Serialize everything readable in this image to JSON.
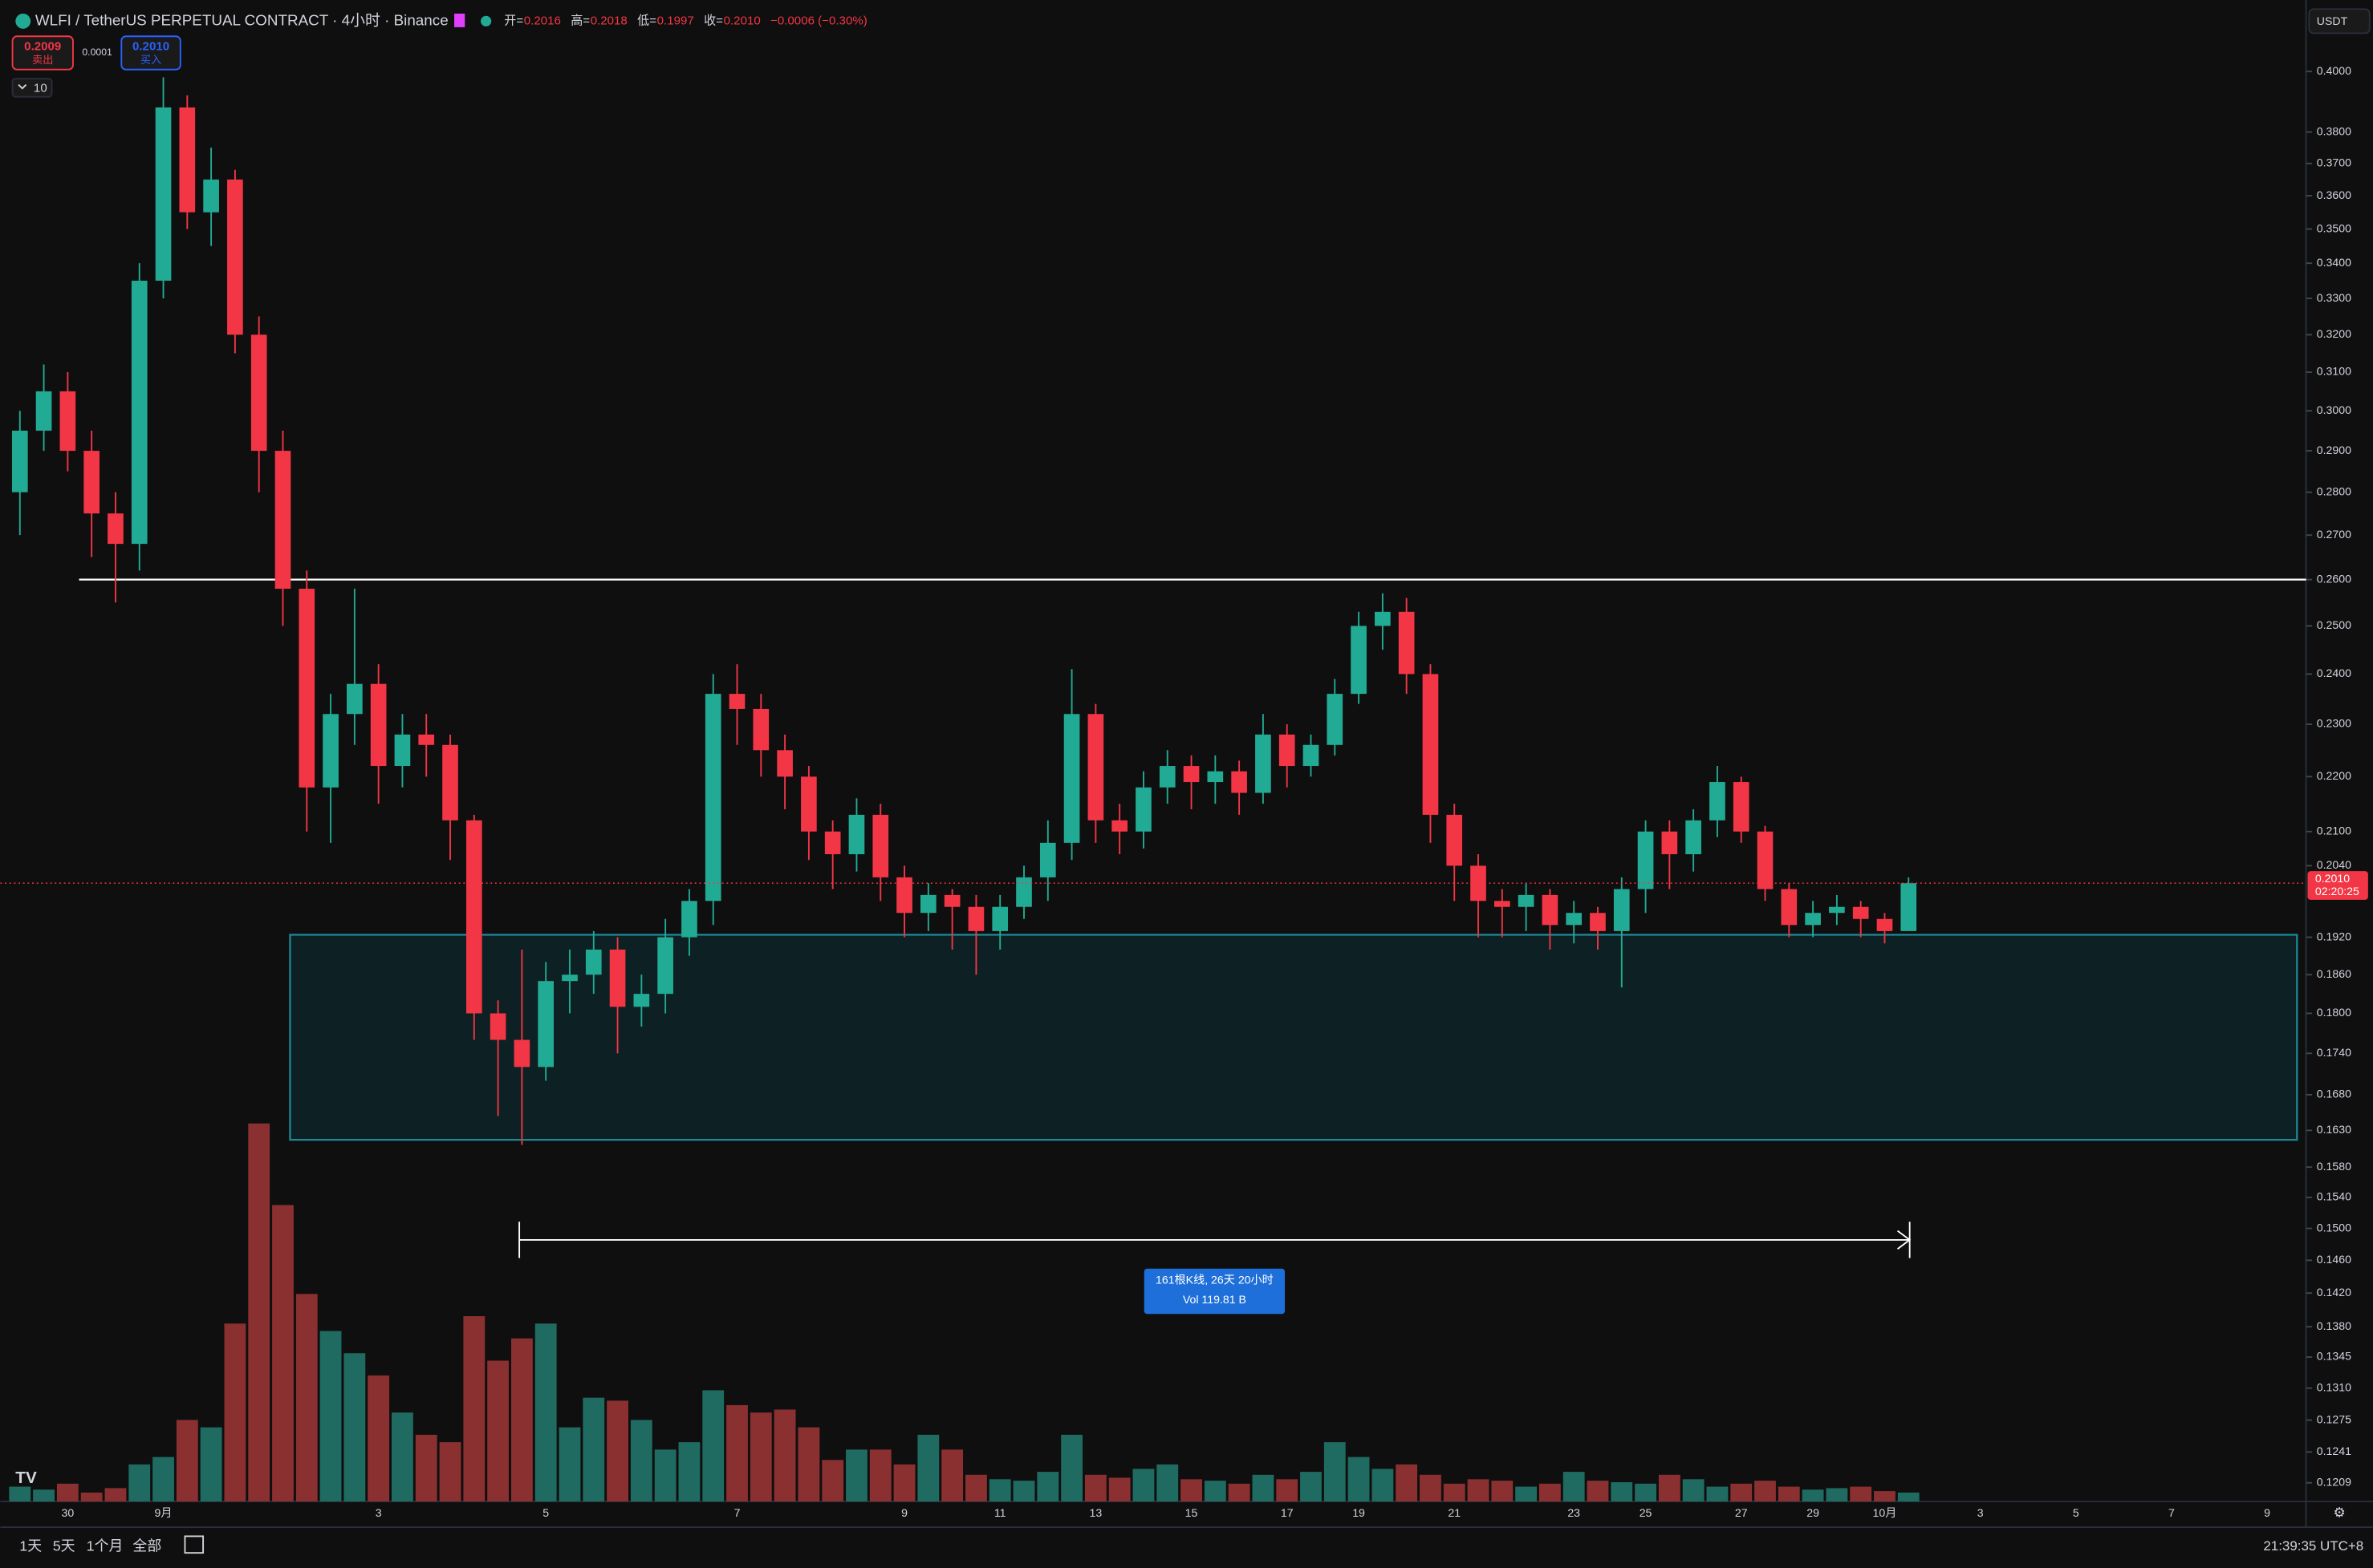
{
  "header": {
    "symbol": "WLFI / TetherUS PERPETUAL CONTRACT · 4小时 · Binance",
    "open_label": "开=",
    "open": "0.2016",
    "high_label": "高=",
    "high": "0.2018",
    "low_label": "低=",
    "low": "0.1997",
    "close_label": "收=",
    "close": "0.2010",
    "change": "−0.0006 (−0.30%)",
    "sell_price": "0.2009",
    "sell_label": "卖出",
    "spread": "0.0001",
    "buy_price": "0.2010",
    "buy_label": "买入",
    "indicator_count": "10",
    "currency": "USDT"
  },
  "chart_data": {
    "type": "candlestick",
    "log_scale": true,
    "up_color": "#22ab94",
    "down_color": "#f23645",
    "volume_up_color": "#1f6b61",
    "volume_down_color": "#8a3030",
    "ylim": [
      0.119,
      0.425
    ],
    "yticks": [
      {
        "value": 0.4,
        "label": "0.4000"
      },
      {
        "value": 0.38,
        "label": "0.3800"
      },
      {
        "value": 0.37,
        "label": "0.3700"
      },
      {
        "value": 0.36,
        "label": "0.3600"
      },
      {
        "value": 0.35,
        "label": "0.3500"
      },
      {
        "value": 0.34,
        "label": "0.3400"
      },
      {
        "value": 0.33,
        "label": "0.3300"
      },
      {
        "value": 0.32,
        "label": "0.3200"
      },
      {
        "value": 0.31,
        "label": "0.3100"
      },
      {
        "value": 0.3,
        "label": "0.3000"
      },
      {
        "value": 0.29,
        "label": "0.2900"
      },
      {
        "value": 0.28,
        "label": "0.2800"
      },
      {
        "value": 0.27,
        "label": "0.2700"
      },
      {
        "value": 0.26,
        "label": "0.2600"
      },
      {
        "value": 0.25,
        "label": "0.2500"
      },
      {
        "value": 0.24,
        "label": "0.2400"
      },
      {
        "value": 0.23,
        "label": "0.2300"
      },
      {
        "value": 0.22,
        "label": "0.2200"
      },
      {
        "value": 0.21,
        "label": "0.2100"
      },
      {
        "value": 0.204,
        "label": "0.2040"
      },
      {
        "value": 0.192,
        "label": "0.1920"
      },
      {
        "value": 0.186,
        "label": "0.1860"
      },
      {
        "value": 0.18,
        "label": "0.1800"
      },
      {
        "value": 0.174,
        "label": "0.1740"
      },
      {
        "value": 0.168,
        "label": "0.1680"
      },
      {
        "value": 0.163,
        "label": "0.1630"
      },
      {
        "value": 0.158,
        "label": "0.1580"
      },
      {
        "value": 0.154,
        "label": "0.1540"
      },
      {
        "value": 0.15,
        "label": "0.1500"
      },
      {
        "value": 0.146,
        "label": "0.1460"
      },
      {
        "value": 0.142,
        "label": "0.1420"
      },
      {
        "value": 0.138,
        "label": "0.1380"
      },
      {
        "value": 0.1345,
        "label": "0.1345"
      },
      {
        "value": 0.131,
        "label": "0.1310"
      },
      {
        "value": 0.1275,
        "label": "0.1275"
      },
      {
        "value": 0.1241,
        "label": "0.1241"
      },
      {
        "value": 0.1209,
        "label": "0.1209"
      }
    ],
    "categories": [
      null,
      null,
      "30",
      null,
      null,
      null,
      "9月",
      null,
      null,
      null,
      null,
      null,
      null,
      null,
      null,
      "3",
      null,
      null,
      null,
      null,
      null,
      null,
      "5",
      null,
      null,
      null,
      null,
      null,
      null,
      null,
      "7",
      null,
      null,
      null,
      null,
      null,
      null,
      "9",
      null,
      null,
      null,
      "11",
      null,
      null,
      null,
      "13",
      null,
      null,
      null,
      "15",
      null,
      null,
      null,
      "17",
      null,
      null,
      "19",
      null,
      null,
      null,
      "21",
      null,
      null,
      null,
      null,
      "23",
      null,
      null,
      "25",
      null,
      null,
      null,
      "27",
      null,
      null,
      "29",
      null,
      null,
      "10月",
      null,
      null,
      null,
      "3",
      null,
      null,
      null,
      "5",
      null,
      null,
      null,
      "7",
      null,
      null,
      null,
      "9",
      null
    ],
    "open": [
      0.28,
      0.295,
      0.305,
      0.29,
      0.275,
      0.268,
      0.335,
      0.388,
      0.355,
      0.365,
      0.32,
      0.29,
      0.258,
      0.218,
      0.232,
      0.238,
      0.222,
      0.228,
      0.226,
      0.212,
      0.18,
      0.176,
      0.172,
      0.185,
      0.186,
      0.19,
      0.181,
      0.183,
      0.192,
      0.198,
      0.236,
      0.233,
      0.225,
      0.22,
      0.21,
      0.206,
      0.213,
      0.202,
      0.196,
      0.199,
      0.197,
      0.193,
      0.197,
      0.202,
      0.208,
      0.232,
      0.212,
      0.21,
      0.218,
      0.222,
      0.219,
      0.221,
      0.217,
      0.228,
      0.222,
      0.226,
      0.236,
      0.25,
      0.253,
      0.24,
      0.213,
      0.204,
      0.198,
      0.197,
      0.199,
      0.194,
      0.196,
      0.193,
      0.2,
      0.21,
      0.206,
      0.212,
      0.219,
      0.21,
      0.2,
      0.194,
      0.196,
      0.197,
      0.195,
      0.193,
      null,
      null,
      null,
      null,
      null,
      null,
      null,
      null,
      null,
      null,
      null,
      null,
      null,
      null,
      null,
      null
    ],
    "high": [
      0.3,
      0.312,
      0.31,
      0.295,
      0.28,
      0.34,
      0.398,
      0.392,
      0.375,
      0.368,
      0.325,
      0.295,
      0.262,
      0.236,
      0.258,
      0.242,
      0.232,
      0.232,
      0.228,
      0.213,
      0.182,
      0.19,
      0.188,
      0.19,
      0.193,
      0.192,
      0.186,
      0.195,
      0.2,
      0.24,
      0.242,
      0.236,
      0.228,
      0.222,
      0.212,
      0.216,
      0.215,
      0.204,
      0.201,
      0.2,
      0.199,
      0.199,
      0.204,
      0.212,
      0.241,
      0.234,
      0.215,
      0.221,
      0.225,
      0.224,
      0.224,
      0.223,
      0.232,
      0.23,
      0.228,
      0.239,
      0.253,
      0.257,
      0.256,
      0.242,
      0.215,
      0.206,
      0.2,
      0.201,
      0.2,
      0.198,
      0.197,
      0.202,
      0.212,
      0.212,
      0.214,
      0.222,
      0.22,
      0.211,
      0.201,
      0.198,
      0.199,
      0.198,
      0.196,
      0.202,
      null,
      null,
      null,
      null,
      null,
      null,
      null,
      null,
      null,
      null,
      null,
      null,
      null,
      null,
      null,
      null
    ],
    "low": [
      0.27,
      0.29,
      0.285,
      0.265,
      0.255,
      0.262,
      0.33,
      0.35,
      0.345,
      0.315,
      0.28,
      0.25,
      0.21,
      0.208,
      0.226,
      0.215,
      0.218,
      0.22,
      0.205,
      0.176,
      0.165,
      0.161,
      0.17,
      0.18,
      0.183,
      0.174,
      0.178,
      0.18,
      0.189,
      0.194,
      0.226,
      0.22,
      0.214,
      0.205,
      0.2,
      0.203,
      0.198,
      0.192,
      0.193,
      0.19,
      0.186,
      0.19,
      0.195,
      0.198,
      0.205,
      0.208,
      0.206,
      0.207,
      0.215,
      0.214,
      0.215,
      0.213,
      0.215,
      0.218,
      0.22,
      0.224,
      0.234,
      0.245,
      0.236,
      0.208,
      0.198,
      0.192,
      0.192,
      0.193,
      0.19,
      0.191,
      0.19,
      0.184,
      0.196,
      0.2,
      0.203,
      0.209,
      0.208,
      0.198,
      0.192,
      0.192,
      0.194,
      0.192,
      0.191,
      0.193,
      null,
      null,
      null,
      null,
      null,
      null,
      null,
      null,
      null,
      null,
      null,
      null,
      null,
      null,
      null,
      null
    ],
    "close": [
      0.295,
      0.305,
      0.29,
      0.275,
      0.268,
      0.335,
      0.388,
      0.355,
      0.365,
      0.32,
      0.29,
      0.258,
      0.218,
      0.232,
      0.238,
      0.222,
      0.228,
      0.226,
      0.212,
      0.18,
      0.176,
      0.172,
      0.185,
      0.186,
      0.19,
      0.181,
      0.183,
      0.192,
      0.198,
      0.236,
      0.233,
      0.225,
      0.22,
      0.21,
      0.206,
      0.213,
      0.202,
      0.196,
      0.199,
      0.197,
      0.193,
      0.197,
      0.202,
      0.208,
      0.232,
      0.212,
      0.21,
      0.218,
      0.222,
      0.219,
      0.221,
      0.217,
      0.228,
      0.222,
      0.226,
      0.236,
      0.25,
      0.253,
      0.24,
      0.213,
      0.204,
      0.198,
      0.197,
      0.199,
      0.194,
      0.196,
      0.193,
      0.2,
      0.21,
      0.206,
      0.212,
      0.219,
      0.21,
      0.2,
      0.194,
      0.196,
      0.197,
      0.195,
      0.193,
      0.201,
      null,
      null,
      null,
      null,
      null,
      null,
      null,
      null,
      null,
      null,
      null,
      null,
      null,
      null,
      null,
      null
    ],
    "volume": [
      10,
      8,
      12,
      6,
      9,
      25,
      30,
      55,
      50,
      120,
      255,
      200,
      140,
      115,
      100,
      85,
      60,
      45,
      40,
      125,
      95,
      110,
      120,
      50,
      70,
      68,
      55,
      35,
      40,
      75,
      65,
      60,
      62,
      50,
      28,
      35,
      35,
      25,
      45,
      35,
      18,
      15,
      14,
      20,
      45,
      18,
      16,
      22,
      25,
      15,
      14,
      12,
      18,
      15,
      20,
      40,
      30,
      22,
      25,
      18,
      12,
      15,
      14,
      10,
      12,
      20,
      14,
      13,
      12,
      18,
      15,
      10,
      12,
      14,
      10,
      8,
      9,
      10,
      7,
      6,
      null,
      null,
      null,
      null,
      null,
      null,
      null,
      null,
      null,
      null,
      null,
      null,
      null,
      null,
      null,
      null
    ],
    "horizontal_line": 0.26,
    "zone": [
      0.1924,
      0.1617
    ],
    "last_price_label": "0.2010",
    "countdown": "02:20:25",
    "measure_label": "161根K线, 26天 20小时",
    "measure_volume": "Vol 119.81 B"
  },
  "footer": {
    "ranges": [
      "1天",
      "5天",
      "1个月",
      "全部"
    ],
    "clock": "21:39:35 UTC+8"
  }
}
